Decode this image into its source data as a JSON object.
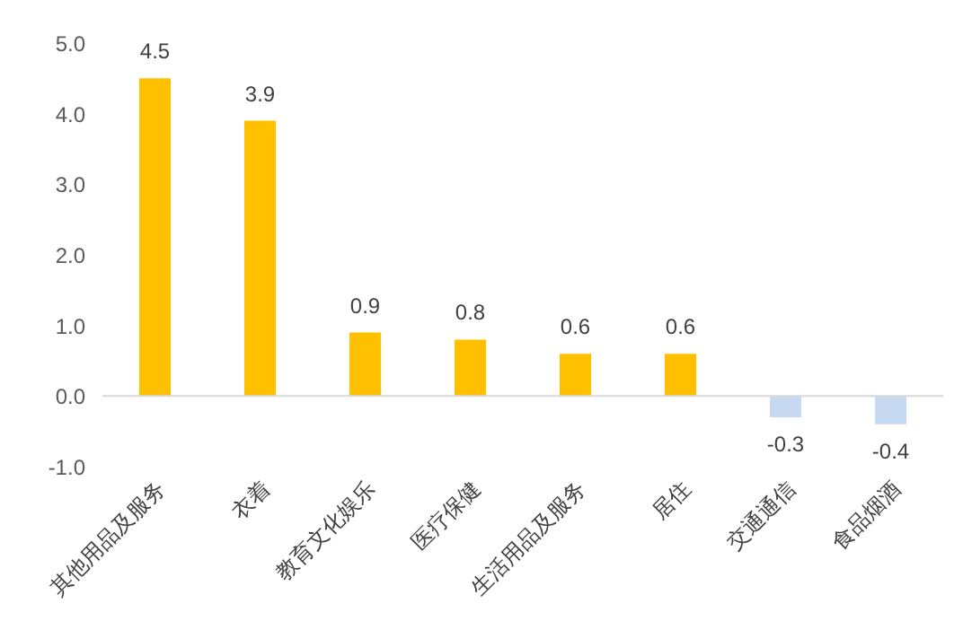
{
  "chart_data": {
    "type": "bar",
    "categories": [
      "其他用品及服务",
      "衣着",
      "教育文化娱乐",
      "医疗保健",
      "生活用品及服务",
      "居住",
      "交通通信",
      "食品烟酒"
    ],
    "values": [
      4.5,
      3.9,
      0.9,
      0.8,
      0.6,
      0.6,
      -0.3,
      -0.4
    ],
    "colors": [
      "#ffc000",
      "#ffc000",
      "#ffc000",
      "#ffc000",
      "#ffc000",
      "#ffc000",
      "#c6d9f1",
      "#c6d9f1"
    ],
    "ylim": [
      -1,
      5
    ],
    "yticks": [
      {
        "value": -1,
        "label": "-1.0"
      },
      {
        "value": 0,
        "label": "0.0"
      },
      {
        "value": 1,
        "label": "1.0"
      },
      {
        "value": 2,
        "label": "2.0"
      },
      {
        "value": 3,
        "label": "3.0"
      },
      {
        "value": 4,
        "label": "4.0"
      },
      {
        "value": 5,
        "label": "5.0"
      }
    ],
    "data_labels": true
  }
}
